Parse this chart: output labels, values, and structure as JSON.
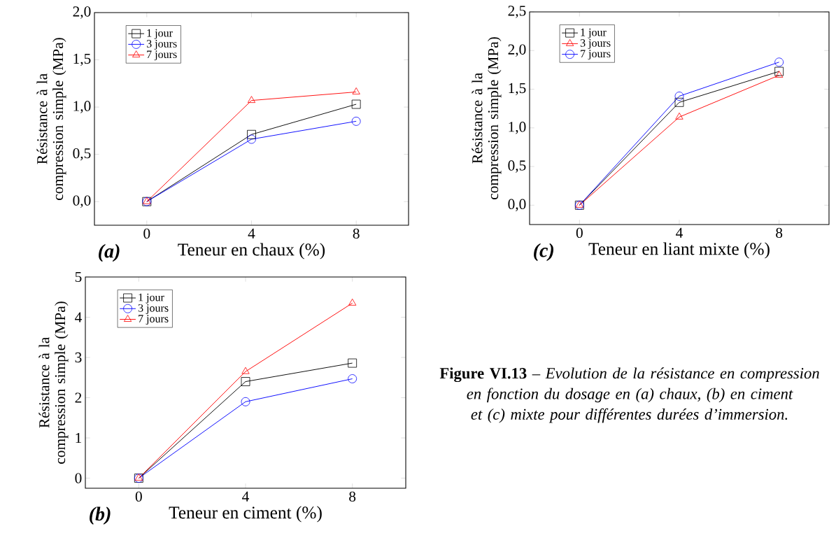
{
  "chart_data": [
    {
      "type": "line",
      "xlabel": "Teneur en chaux (%)",
      "ylabel": "Résistance à la compression simple (MPa)",
      "annotations": [
        "(a)"
      ],
      "x": [
        0,
        4,
        8
      ],
      "xlim": [
        -2,
        10
      ],
      "xticks": [
        0,
        4,
        8
      ],
      "ylim": [
        -0.25,
        2.0
      ],
      "yticks": [
        {
          "value": 0,
          "label": "0,0"
        },
        {
          "value": 0.5,
          "label": "0,5"
        },
        {
          "value": 1.0,
          "label": "1,0"
        },
        {
          "value": 1.5,
          "label": "1,5"
        },
        {
          "value": 2.0,
          "label": "2,0"
        }
      ],
      "legend": "top left",
      "line_style": "solid",
      "series": [
        {
          "name": "1 jour",
          "color": "#000000",
          "marker": "square",
          "values": [
            0,
            0.71,
            1.03
          ]
        },
        {
          "name": "3 jours",
          "color": "#0000ff",
          "marker": "circle",
          "values": [
            0,
            0.66,
            0.85
          ]
        },
        {
          "name": "7 jours",
          "color": "#ff0000",
          "marker": "triangle",
          "values": [
            0,
            1.07,
            1.16
          ]
        }
      ]
    },
    {
      "type": "line",
      "xlabel": "Teneur en liant mixte (%)",
      "ylabel": "Résistance à la compression simple (MPa)",
      "annotations": [
        "(c)"
      ],
      "x": [
        0,
        4,
        8
      ],
      "xlim": [
        -2,
        10
      ],
      "xticks": [
        0,
        4,
        8
      ],
      "ylim": [
        -0.25,
        2.5
      ],
      "yticks": [
        {
          "value": 0,
          "label": "0,0"
        },
        {
          "value": 0.5,
          "label": "0,5"
        },
        {
          "value": 1.0,
          "label": "1,0"
        },
        {
          "value": 1.5,
          "label": "1,5"
        },
        {
          "value": 2.0,
          "label": "2,0"
        },
        {
          "value": 2.5,
          "label": "2,5"
        }
      ],
      "legend": "top left",
      "line_style": "solid",
      "series": [
        {
          "name": "1 jour",
          "color": "#000000",
          "marker": "square",
          "values": [
            0,
            1.33,
            1.73
          ]
        },
        {
          "name": "3 jours",
          "color": "#ff0000",
          "marker": "triangle",
          "values": [
            0,
            1.14,
            1.68
          ]
        },
        {
          "name": "7 jours",
          "color": "#0000ff",
          "marker": "circle",
          "values": [
            0,
            1.41,
            1.85
          ]
        }
      ]
    },
    {
      "type": "line",
      "xlabel": "Teneur en ciment (%)",
      "ylabel": "Résistance à la compression simple (MPa)",
      "annotations": [
        "(b)"
      ],
      "x": [
        0,
        4,
        8
      ],
      "xlim": [
        -2,
        10
      ],
      "xticks": [
        0,
        4,
        8
      ],
      "ylim": [
        -0.25,
        5
      ],
      "yticks": [
        0,
        1,
        2,
        3,
        4,
        5
      ],
      "legend": "top left",
      "line_style": "solid",
      "series": [
        {
          "name": "1 jour",
          "color": "#000000",
          "marker": "square",
          "values": [
            0,
            2.4,
            2.86
          ]
        },
        {
          "name": "3 jours",
          "color": "#0000ff",
          "marker": "circle",
          "values": [
            0,
            1.9,
            2.47
          ]
        },
        {
          "name": "7 jours",
          "color": "#ff0000",
          "marker": "triangle",
          "values": [
            0,
            2.65,
            4.35
          ]
        }
      ]
    },
    {
      "type": "other",
      "title": "**Figure VI.13** – *Evolution de la résistance en compression en fonction du dosage en (a) chaux, (b) en ciment et (c) mixte pour différentes durées d’immersion.*"
    }
  ]
}
